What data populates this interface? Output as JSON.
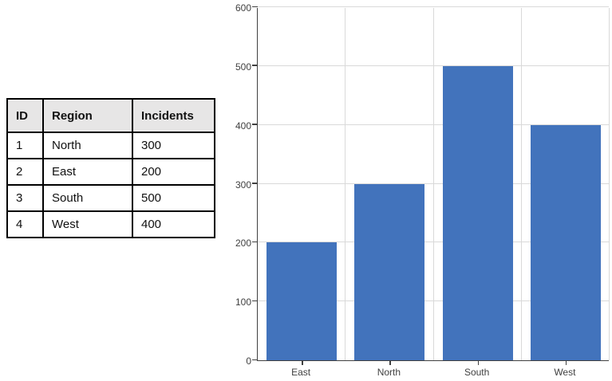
{
  "table": {
    "headers": [
      "ID",
      "Region",
      "Incidents"
    ],
    "rows": [
      [
        "1",
        "North",
        "300"
      ],
      [
        "2",
        "East",
        "200"
      ],
      [
        "3",
        "South",
        "500"
      ],
      [
        "4",
        "West",
        "400"
      ]
    ],
    "header_bg": "#E7E6E6",
    "border_color": "#000000"
  },
  "chart_data": {
    "type": "bar",
    "categories": [
      "East",
      "North",
      "South",
      "West"
    ],
    "values": [
      200,
      300,
      500,
      400
    ],
    "title": "",
    "xlabel": "",
    "ylabel": "",
    "ylim": [
      0,
      600
    ],
    "ytick_step": 100,
    "yticks": [
      0,
      100,
      200,
      300,
      400,
      500,
      600
    ],
    "bar_color": "#4273BC",
    "gridline_color": "#D9D9D9",
    "axis_color": "#404040",
    "label_color": "#404040",
    "grid": true,
    "legend_position": "none"
  }
}
